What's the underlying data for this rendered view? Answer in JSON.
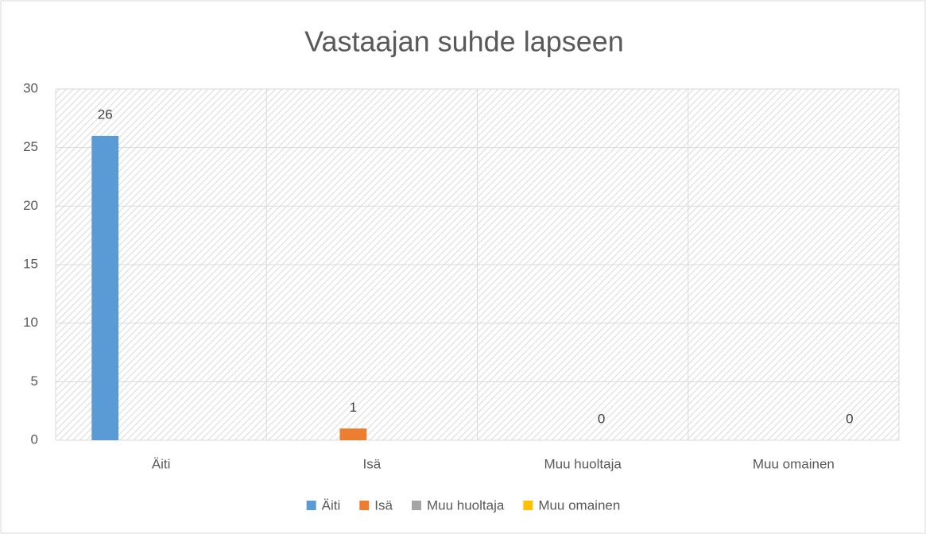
{
  "chart_data": {
    "type": "bar",
    "title": "Vastaajan suhde lapseen",
    "categories": [
      "Äiti",
      "Isä",
      "Muu huoltaja",
      "Muu omainen"
    ],
    "series": [
      {
        "name": "Äiti",
        "color": "#5b9bd5",
        "values": [
          26,
          null,
          null,
          null
        ]
      },
      {
        "name": "Isä",
        "color": "#ed7d31",
        "values": [
          null,
          1,
          null,
          null
        ]
      },
      {
        "name": "Muu huoltaja",
        "color": "#a5a5a5",
        "values": [
          null,
          null,
          0,
          null
        ]
      },
      {
        "name": "Muu omainen",
        "color": "#ffc000",
        "values": [
          null,
          null,
          null,
          0
        ]
      }
    ],
    "ylim": [
      0,
      30
    ],
    "yticks": [
      0,
      5,
      10,
      15,
      20,
      25,
      30
    ],
    "grid": true,
    "legend": "bottom"
  }
}
